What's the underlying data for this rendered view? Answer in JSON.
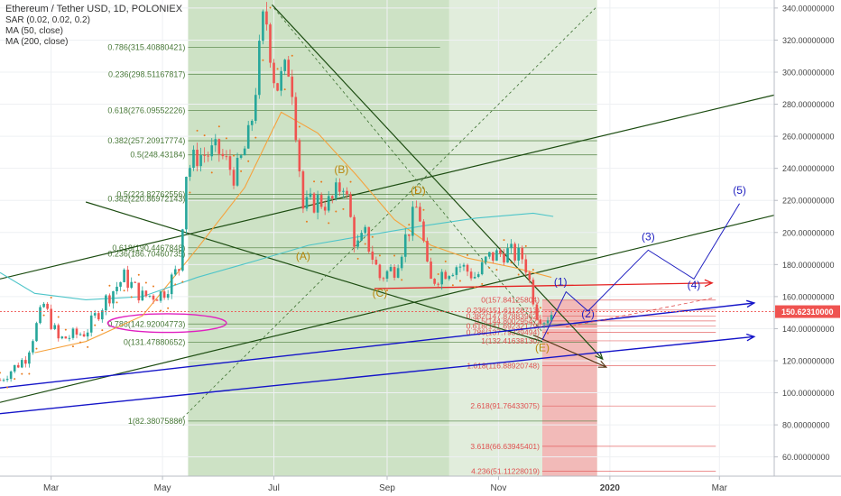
{
  "header": {
    "title": "Ethereum / Tether USD, 1D, POLONIEX",
    "indicators": [
      "SAR (0.02, 0.02, 0.2)",
      "MA (50, close)",
      "MA (200, close)"
    ]
  },
  "colors": {
    "up": "#26a69a",
    "down": "#ef5350",
    "ma50": "#f6a23c",
    "ma200": "#4ec5c9",
    "sar": "#e97b1e",
    "wave": "#b8860b",
    "projection": "#2020c0",
    "fib_green": "#4a7a3a",
    "fib_red": "#e05050",
    "green_zone": "#c8dfbf",
    "red_zone": "#f4b4b4",
    "price_tag": "#ef5350"
  },
  "chart_data": {
    "type": "candlestick",
    "x_axis": {
      "start": "2019-02-01",
      "end": "2020-03-31",
      "tick_labels": [
        {
          "date": "2019-03-01",
          "label": "Mar"
        },
        {
          "date": "2019-05-01",
          "label": "May"
        },
        {
          "date": "2019-07-01",
          "label": "Jul"
        },
        {
          "date": "2019-09-01",
          "label": "Sep"
        },
        {
          "date": "2019-11-01",
          "label": "Nov"
        },
        {
          "date": "2020-01-01",
          "label": "2020"
        },
        {
          "date": "2020-03-01",
          "label": "Mar"
        }
      ]
    },
    "y_axis": {
      "range": [
        48,
        345
      ],
      "ticks": [
        "340.00000000",
        "320.00000000",
        "300.00000000",
        "280.00000000",
        "260.00000000",
        "240.00000000",
        "220.00000000",
        "200.00000000",
        "180.00000000",
        "160.00000000",
        "140.00000000",
        "120.00000000",
        "100.00000000",
        "80.00000000",
        "60.00000000"
      ],
      "tick_values": [
        340,
        320,
        300,
        280,
        260,
        240,
        220,
        200,
        180,
        160,
        140,
        120,
        100,
        80,
        60
      ]
    },
    "last_price": {
      "value": 150.6231,
      "label": "150.62310000"
    },
    "price_path": [
      [
        "2019-02-01",
        108
      ],
      [
        "2019-02-15",
        122
      ],
      [
        "2019-02-25",
        155
      ],
      [
        "2019-03-05",
        133
      ],
      [
        "2019-03-20",
        138
      ],
      [
        "2019-04-01",
        160
      ],
      [
        "2019-04-10",
        172
      ],
      [
        "2019-04-20",
        160
      ],
      [
        "2019-05-01",
        162
      ],
      [
        "2019-05-10",
        178
      ],
      [
        "2019-05-14",
        238
      ],
      [
        "2019-05-20",
        248
      ],
      [
        "2019-06-01",
        250
      ],
      [
        "2019-06-10",
        235
      ],
      [
        "2019-06-18",
        262
      ],
      [
        "2019-06-26",
        340
      ],
      [
        "2019-07-02",
        290
      ],
      [
        "2019-07-10",
        305
      ],
      [
        "2019-07-17",
        215
      ],
      [
        "2019-07-25",
        220
      ],
      [
        "2019-08-01",
        218
      ],
      [
        "2019-08-08",
        232
      ],
      [
        "2019-08-15",
        190
      ],
      [
        "2019-08-20",
        198
      ],
      [
        "2019-08-28",
        172
      ],
      [
        "2019-09-05",
        178
      ],
      [
        "2019-09-18",
        218
      ],
      [
        "2019-09-24",
        168
      ],
      [
        "2019-10-01",
        175
      ],
      [
        "2019-10-10",
        180
      ],
      [
        "2019-10-20",
        172
      ],
      [
        "2019-10-26",
        184
      ],
      [
        "2019-11-05",
        188
      ],
      [
        "2019-11-15",
        184
      ],
      [
        "2019-11-22",
        150
      ],
      [
        "2019-11-26",
        146
      ],
      [
        "2019-12-01",
        150.6
      ]
    ],
    "ma50_path": [
      [
        "2019-02-20",
        125
      ],
      [
        "2019-03-20",
        132
      ],
      [
        "2019-04-20",
        148
      ],
      [
        "2019-05-20",
        190
      ],
      [
        "2019-06-15",
        228
      ],
      [
        "2019-07-05",
        275
      ],
      [
        "2019-07-25",
        262
      ],
      [
        "2019-08-15",
        236
      ],
      [
        "2019-09-05",
        208
      ],
      [
        "2019-09-25",
        192
      ],
      [
        "2019-10-15",
        184
      ],
      [
        "2019-11-10",
        178
      ],
      [
        "2019-11-30",
        172
      ]
    ],
    "ma200_path": [
      [
        "2019-02-01",
        175
      ],
      [
        "2019-02-20",
        162
      ],
      [
        "2019-03-20",
        158
      ],
      [
        "2019-04-20",
        160
      ],
      [
        "2019-05-20",
        172
      ],
      [
        "2019-06-20",
        182
      ],
      [
        "2019-07-20",
        192
      ],
      [
        "2019-08-20",
        198
      ],
      [
        "2019-09-20",
        204
      ],
      [
        "2019-10-20",
        209
      ],
      [
        "2019-11-20",
        212
      ],
      [
        "2019-12-01",
        210
      ]
    ],
    "fib_green": [
      {
        "label": "0.786(315.40880421)",
        "value": 315.4088,
        "from": "2019-05-15",
        "to": "2019-09-30"
      },
      {
        "label": "0.236(298.51167817)",
        "value": 298.5117,
        "from": "2019-05-15",
        "to": "2019-12-25"
      },
      {
        "label": "0.618(276.09552226)",
        "value": 276.0955,
        "from": "2019-05-15",
        "to": "2019-12-25"
      },
      {
        "label": "0.382(257.20917774)",
        "value": 257.2092,
        "from": "2019-05-15",
        "to": "2019-12-25"
      },
      {
        "label": "0.5(248.43184)",
        "value": 248.4318,
        "from": "2019-05-15",
        "to": "2019-12-25"
      },
      {
        "label": "0.5(223.82762556)",
        "value": 223.8276,
        "from": "2019-05-15",
        "to": "2019-12-25"
      },
      {
        "label": "0.382(220.86972143)",
        "value": 220.8697,
        "from": "2019-05-15",
        "to": "2019-12-25"
      },
      {
        "label": "0.618(190.4467848)",
        "value": 190.4468,
        "from": "2019-05-15",
        "to": "2019-12-25"
      },
      {
        "label": "0.236(186.70460735)",
        "value": 186.7046,
        "from": "2019-05-15",
        "to": "2019-12-25"
      },
      {
        "label": "0.786(142.92004773)",
        "value": 142.92,
        "from": "2019-05-15",
        "to": "2019-12-25"
      },
      {
        "label": "0(131.47880652)",
        "value": 131.4788,
        "from": "2019-05-15",
        "to": "2019-12-25"
      },
      {
        "label": "1(82.38075880)",
        "value": 82.3808,
        "from": "2019-05-15",
        "to": "2019-12-25"
      }
    ],
    "fib_red": [
      {
        "label": "0(157.84125804)",
        "value": 157.8413
      },
      {
        "label": "0.236(151.61128713)",
        "value": 151.6113
      },
      {
        "label": "0.382(147.87883962)",
        "value": 147.8788
      },
      {
        "label": "0.5(144.80029547)",
        "value": 144.8003
      },
      {
        "label": "0.618(141.69232179)",
        "value": 141.6923
      },
      {
        "label": "0.786(137.79339494)",
        "value": 137.7934
      },
      {
        "label": "1(132.41638130)",
        "value": 132.4164
      },
      {
        "label": "1.618(116.88920748)",
        "value": 116.8892
      },
      {
        "label": "2.618(91.76433075)",
        "value": 91.7643
      },
      {
        "label": "3.618(66.63945401)",
        "value": 66.6395
      },
      {
        "label": "4.236(51.11228019)",
        "value": 51.1123
      }
    ],
    "fib_red_range": {
      "from": "2019-11-25",
      "to": "2020-02-28"
    },
    "green_zones": [
      {
        "from": "2019-05-15",
        "to": "2019-10-05",
        "y_top": 345,
        "y_bottom": 48
      },
      {
        "from": "2019-10-05",
        "to": "2019-12-25",
        "y_top": 345,
        "y_bottom": 48
      }
    ],
    "red_zone": {
      "from": "2019-11-25",
      "to": "2019-12-25",
      "y_top": 157.84,
      "y_bottom": 48
    },
    "waves_abc": [
      {
        "label": "(A)",
        "date": "2019-07-17",
        "value": 183
      },
      {
        "label": "(B)",
        "date": "2019-08-07",
        "value": 237
      },
      {
        "label": "(C)",
        "date": "2019-08-28",
        "value": 160
      },
      {
        "label": "(D)",
        "date": "2019-09-18",
        "value": 224
      },
      {
        "label": "(E)",
        "date": "2019-11-25",
        "value": 126
      }
    ],
    "waves_proj": [
      {
        "label": "(1)",
        "date": "2019-12-05",
        "value": 167
      },
      {
        "label": "(2)",
        "date": "2019-12-20",
        "value": 147
      },
      {
        "label": "(3)",
        "date": "2020-01-22",
        "value": 195
      },
      {
        "label": "(4)",
        "date": "2020-02-16",
        "value": 165
      },
      {
        "label": "(5)",
        "date": "2020-03-12",
        "value": 224
      }
    ],
    "proj_path": [
      [
        "2019-11-25",
        133
      ],
      [
        "2019-12-08",
        163
      ],
      [
        "2019-12-20",
        151
      ],
      [
        "2020-01-22",
        189
      ],
      [
        "2020-02-16",
        171
      ],
      [
        "2020-03-12",
        218
      ]
    ],
    "trendlines": [
      {
        "kind": "green",
        "points": [
          [
            "2019-02-01",
            171
          ],
          [
            "2020-04-01",
            286
          ]
        ]
      },
      {
        "kind": "green",
        "points": [
          [
            "2019-02-01",
            94
          ],
          [
            "2020-04-01",
            211
          ]
        ]
      },
      {
        "kind": "green",
        "points": [
          [
            "2019-03-20",
            219
          ],
          [
            "2019-11-25",
            132
          ]
        ]
      },
      {
        "kind": "green_arrow",
        "points": [
          [
            "2019-06-30",
            342
          ],
          [
            "2019-12-28",
            121
          ]
        ]
      },
      {
        "kind": "green_dash",
        "points": [
          [
            "2019-05-10",
            82
          ],
          [
            "2019-12-25",
            341
          ]
        ]
      },
      {
        "kind": "green_dash",
        "points": [
          [
            "2019-07-01",
            340
          ],
          [
            "2019-11-25",
            138
          ]
        ]
      },
      {
        "kind": "red",
        "points": [
          [
            "2019-08-25",
            165
          ],
          [
            "2020-02-26",
            168.5
          ]
        ]
      },
      {
        "kind": "blue",
        "points": [
          [
            "2019-02-01",
            103
          ],
          [
            "2020-03-20",
            156
          ]
        ]
      },
      {
        "kind": "blue",
        "points": [
          [
            "2019-02-01",
            87
          ],
          [
            "2020-03-20",
            135
          ]
        ]
      },
      {
        "kind": "dark_arrow",
        "points": [
          [
            "2019-11-20",
            136
          ],
          [
            "2019-12-30",
            116
          ]
        ]
      },
      {
        "kind": "red_dash",
        "points": [
          [
            "2019-12-08",
            141
          ],
          [
            "2020-02-26",
            159
          ]
        ]
      }
    ],
    "ellipse": {
      "date_from": "2019-04-01",
      "date_to": "2019-06-05",
      "y_center": 143.5,
      "y_radius": 5.8
    }
  }
}
